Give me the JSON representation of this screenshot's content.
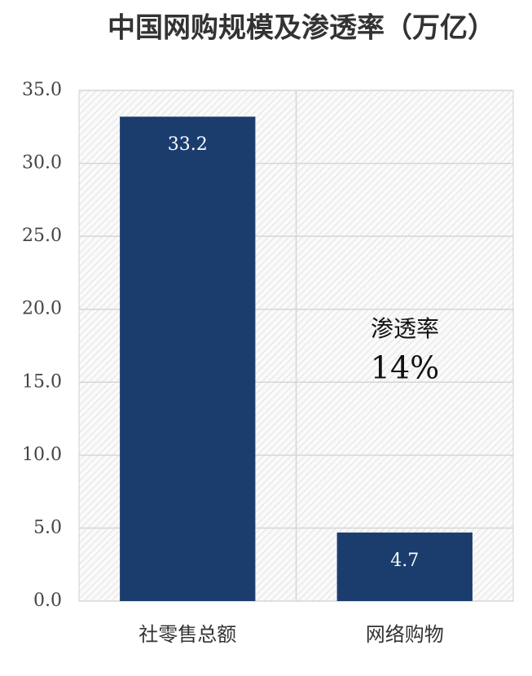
{
  "chart_data": {
    "type": "bar",
    "title": "中国网购规模及渗透率（万亿）",
    "categories": [
      "社零售总额",
      "网络购物"
    ],
    "values": [
      33.2,
      4.7
    ],
    "color": "#1b3d6e",
    "ylim": [
      0,
      35
    ],
    "yticks": [
      {
        "value": 0,
        "label": "0.0"
      },
      {
        "value": 5,
        "label": "5.0"
      },
      {
        "value": 10,
        "label": "10.0"
      },
      {
        "value": 15,
        "label": "15.0"
      },
      {
        "value": 20,
        "label": "20.0"
      },
      {
        "value": 25,
        "label": "25.0"
      },
      {
        "value": 30,
        "label": "30.0"
      },
      {
        "value": 35,
        "label": "35.0"
      }
    ],
    "grid": true,
    "annotations": [
      "渗透率",
      "14%"
    ]
  }
}
